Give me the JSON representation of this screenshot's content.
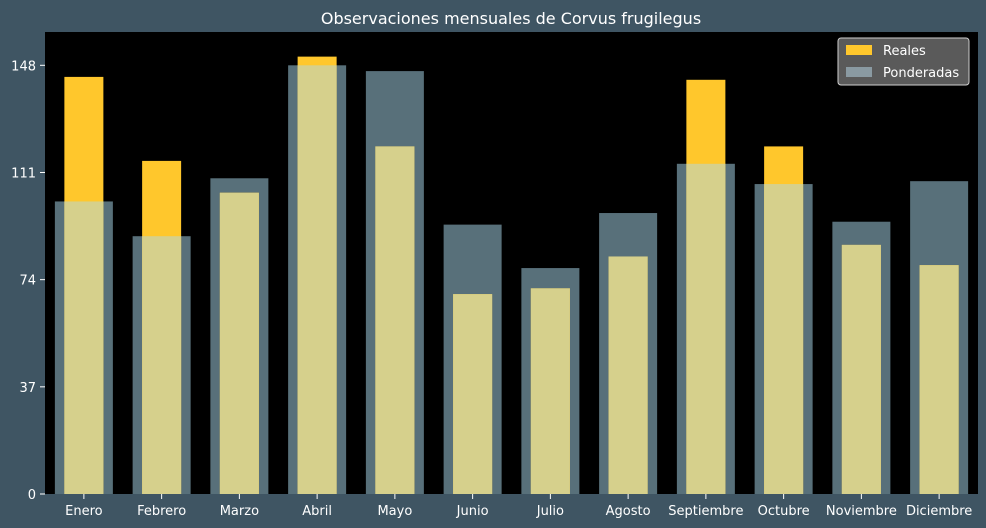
{
  "chart_data": {
    "type": "bar",
    "title": "Observaciones mensuales de Corvus frugilegus",
    "xlabel": "",
    "ylabel": "",
    "categories": [
      "Enero",
      "Febrero",
      "Marzo",
      "Abril",
      "Mayo",
      "Junio",
      "Julio",
      "Agosto",
      "Septiembre",
      "Octubre",
      "Noviembre",
      "Diciembre"
    ],
    "series": [
      {
        "name": "Reales",
        "values": [
          144,
          115,
          104,
          151,
          120,
          69,
          71,
          82,
          143,
          120,
          86,
          79
        ],
        "color": "#ffc72c"
      },
      {
        "name": "Ponderadas",
        "values": [
          101,
          89,
          109,
          148,
          146,
          93,
          78,
          97,
          114,
          107,
          94,
          108
        ],
        "color": "#91a6b2",
        "opacity": 0.6
      }
    ],
    "yticks": [
      0,
      37,
      74,
      111,
      148
    ],
    "ylim": [
      0,
      159.5
    ],
    "legend_position": "top-right",
    "grid": false,
    "colors": {
      "background": "#3f5563",
      "plot_background": "#000000",
      "text": "#ffffff",
      "legend_background": "#5a5a5a",
      "legend_border": "#cfcfcf"
    }
  }
}
